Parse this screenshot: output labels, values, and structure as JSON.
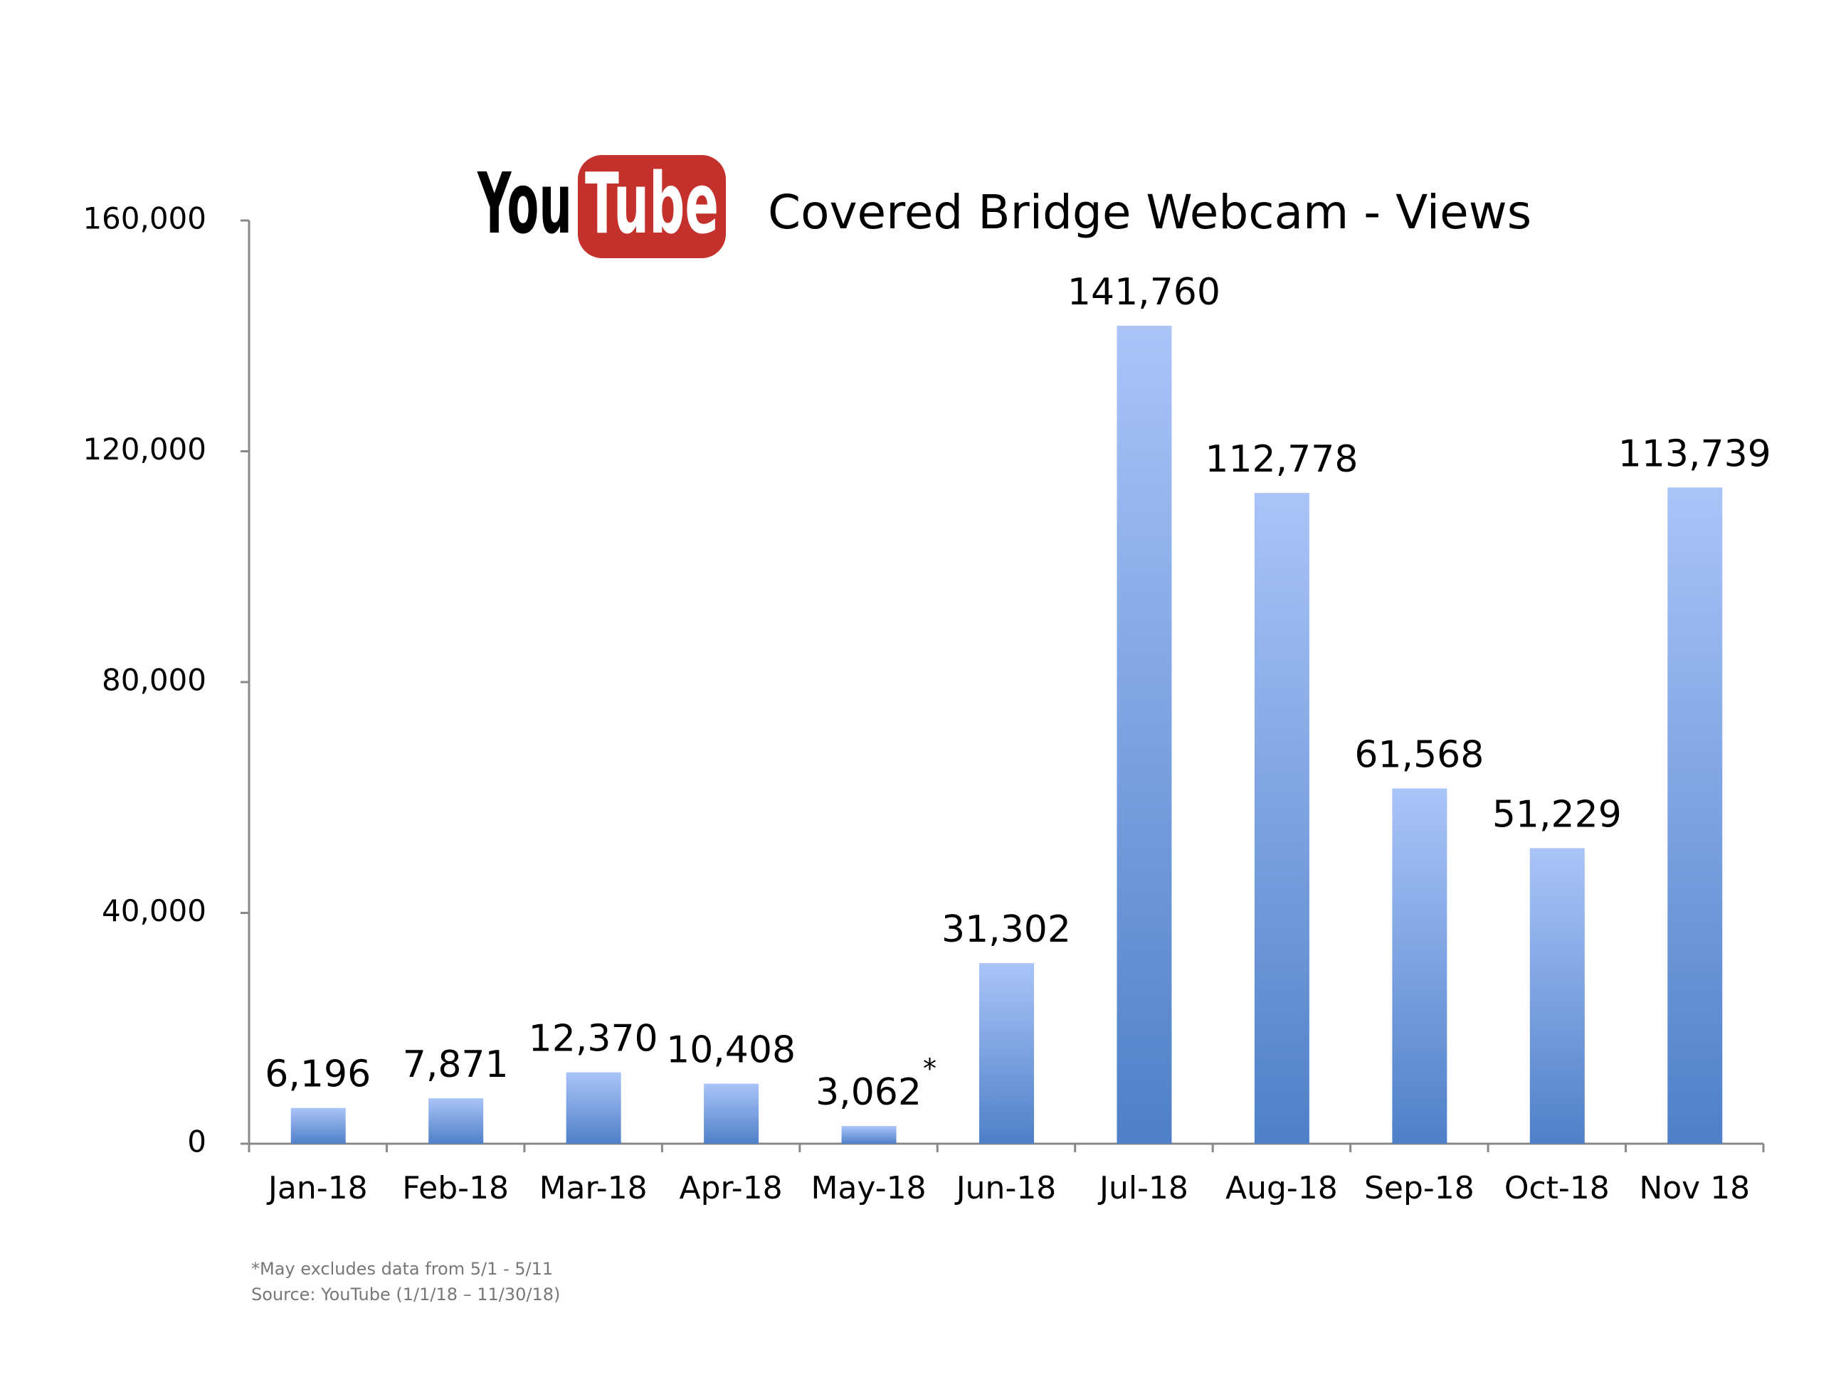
{
  "chart_data": {
    "type": "bar",
    "title": "Covered Bridge Webcam - Views",
    "logo_text": [
      "You",
      "Tube"
    ],
    "categories": [
      "Jan-18",
      "Feb-18",
      "Mar-18",
      "Apr-18",
      "May-18",
      "Jun-18",
      "Jul-18",
      "Aug-18",
      "Sep-18",
      "Oct-18",
      "Nov 18"
    ],
    "values": [
      6196,
      7871,
      12370,
      10408,
      3062,
      31302,
      141760,
      112778,
      61568,
      51229,
      113739
    ],
    "value_labels": [
      "6,196",
      "7,871",
      "12,370",
      "10,408",
      "3,062",
      "31,302",
      "141,760",
      "112,778",
      "61,568",
      "51,229",
      "113,739"
    ],
    "annotation": "*",
    "footnotes": [
      "*May excludes data from 5/1 - 5/11",
      "Source: YouTube (1/1/18 – 11/30/18)"
    ],
    "color": "#4f80c8",
    "gradient_top": "#aac4f8",
    "ylim": [
      0,
      160000
    ],
    "yticks": [
      0,
      {
        "value": 40000,
        "label": "40,000"
      },
      {
        "value": 80000,
        "label": "80,000"
      },
      {
        "value": 120000,
        "label": "120,000"
      },
      {
        "value": 160000,
        "label": "160,000"
      }
    ],
    "grid": false
  }
}
